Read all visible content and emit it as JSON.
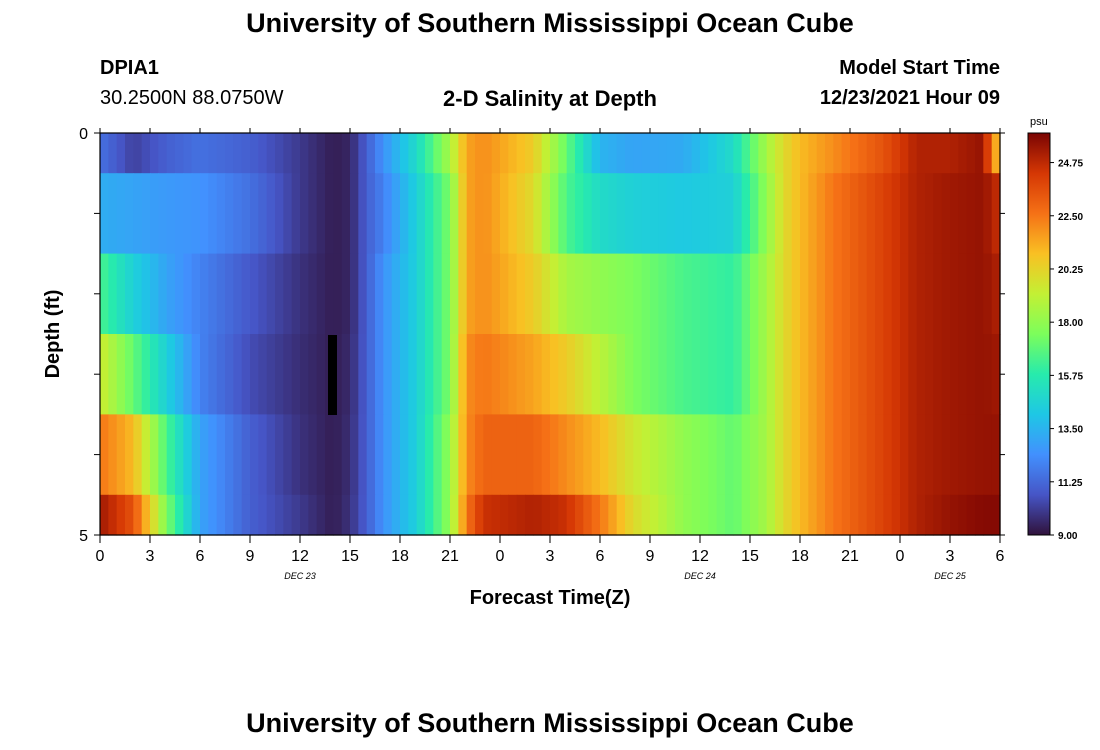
{
  "header": {
    "title": "University of Southern Mississippi Ocean Cube",
    "station_id": "DPIA1",
    "station_coords": "30.2500N  88.0750W",
    "subtitle": "2-D Salinity at Depth",
    "model_start_label": "Model Start Time",
    "model_start_value": "12/23/2021 Hour 09"
  },
  "footer": {
    "title": "University of Southern Mississippi Ocean Cube"
  },
  "chart_data": {
    "type": "heatmap",
    "title": "2-D Salinity at Depth",
    "xlabel": "Forecast Time(Z)",
    "ylabel": "Depth (ft)",
    "x_ticks": [
      "0",
      "3",
      "6",
      "9",
      "12",
      "15",
      "18",
      "21",
      "0",
      "3",
      "6",
      "9",
      "12",
      "15",
      "18",
      "21",
      "0",
      "3",
      "6"
    ],
    "x_day_labels": [
      {
        "label": "DEC 23",
        "at_hour": 12
      },
      {
        "label": "DEC 24",
        "at_hour": 36
      },
      {
        "label": "DEC 25",
        "at_hour": 51
      }
    ],
    "x_range_hours": [
      0,
      54
    ],
    "y_ticks": [
      "0",
      "5"
    ],
    "y_range": [
      0,
      5
    ],
    "colorbar": {
      "unit": "psu",
      "min": 9.0,
      "max": 26.0,
      "ticks": [
        "24.75",
        "22.50",
        "20.25",
        "18.00",
        "15.75",
        "13.50",
        "11.25",
        "9.00"
      ],
      "colormap": "turbo"
    },
    "anchor_hours": [
      0,
      2,
      4,
      6,
      9,
      12,
      14,
      15,
      16,
      17,
      19,
      21,
      22,
      23,
      26,
      28,
      30,
      32,
      35,
      38,
      40,
      41,
      42,
      44,
      47,
      49,
      51,
      53,
      54
    ],
    "rows_depth_bins": [
      "0-0.5",
      "0.5-1.5",
      "1.5-2.5",
      "2.5-3.5",
      "3.5-4.5",
      "4.5-5"
    ],
    "rows_salinity": [
      [
        11.5,
        10.2,
        11.0,
        11.5,
        11.0,
        10.0,
        9.3,
        9.5,
        11.0,
        12.5,
        15.0,
        18.5,
        21.5,
        22.0,
        20.5,
        17.0,
        13.5,
        13.0,
        13.2,
        15.0,
        18.5,
        20.0,
        21.0,
        22.0,
        23.5,
        25.0,
        25.0,
        25.5,
        20.0
      ],
      [
        13.3,
        13.0,
        12.7,
        12.5,
        11.5,
        10.0,
        9.3,
        9.5,
        11.0,
        12.0,
        14.5,
        17.5,
        21.5,
        22.0,
        20.0,
        16.5,
        15.0,
        14.5,
        14.2,
        14.5,
        18.0,
        20.0,
        21.0,
        22.5,
        24.0,
        25.0,
        25.3,
        25.5,
        24.5
      ],
      [
        16.5,
        14.5,
        13.0,
        12.0,
        10.8,
        9.8,
        9.3,
        9.5,
        11.0,
        12.5,
        14.5,
        17.5,
        21.5,
        22.0,
        20.5,
        18.5,
        18.0,
        17.5,
        16.5,
        16.0,
        18.5,
        20.0,
        21.0,
        22.5,
        24.0,
        25.0,
        25.3,
        25.5,
        25.0
      ],
      [
        19.5,
        17.0,
        14.5,
        12.0,
        10.5,
        9.7,
        9.3,
        9.6,
        11.0,
        12.5,
        14.5,
        17.5,
        22.0,
        22.5,
        21.5,
        20.5,
        19.0,
        17.5,
        16.5,
        16.0,
        18.5,
        20.0,
        21.0,
        22.5,
        24.0,
        25.0,
        25.3,
        25.5,
        25.3
      ],
      [
        22.5,
        21.0,
        16.5,
        13.0,
        11.0,
        9.8,
        9.3,
        9.7,
        11.0,
        12.5,
        14.5,
        18.0,
        22.0,
        23.0,
        23.0,
        22.0,
        21.0,
        19.5,
        18.0,
        17.0,
        18.5,
        20.0,
        21.0,
        22.5,
        24.0,
        25.0,
        25.3,
        25.5,
        25.5
      ],
      [
        25.3,
        23.5,
        17.5,
        13.0,
        11.0,
        10.0,
        9.3,
        9.8,
        11.0,
        12.5,
        14.5,
        18.0,
        22.5,
        24.5,
        25.0,
        24.5,
        22.5,
        20.0,
        18.0,
        17.0,
        18.5,
        20.0,
        21.0,
        22.5,
        24.0,
        25.0,
        25.5,
        25.8,
        25.8
      ]
    ]
  }
}
